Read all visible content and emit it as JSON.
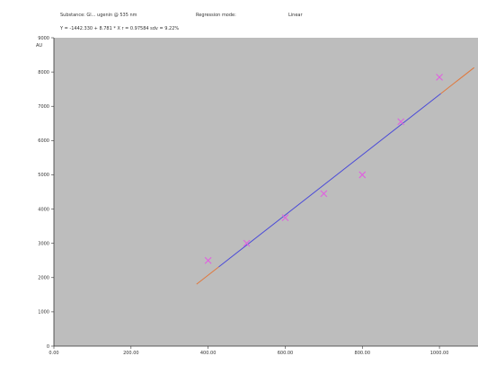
{
  "header": {
    "substance": "Substance: Gl... ugenin @ 535 nm",
    "regression_mode": "Regression mode:",
    "regression_value": "Linear",
    "equation": "Y = -1442.330 + 8.781 * X   r = 0.97584   sdv = 9.22%"
  },
  "chart_data": {
    "type": "scatter",
    "ylabel": "AU",
    "xlim": [
      0,
      1100
    ],
    "ylim": [
      0,
      9000
    ],
    "x_ticks": [
      "0.00",
      "200.00",
      "400.00",
      "600.00",
      "800.00",
      "1000.00"
    ],
    "y_ticks": [
      "0",
      "1000",
      "2000",
      "3000",
      "4000",
      "5000",
      "6000",
      "7000",
      "8000",
      "9000"
    ],
    "points": [
      {
        "x": 400,
        "y": 2500
      },
      {
        "x": 500,
        "y": 3000
      },
      {
        "x": 600,
        "y": 3750
      },
      {
        "x": 700,
        "y": 4450
      },
      {
        "x": 800,
        "y": 5000
      },
      {
        "x": 900,
        "y": 6550
      },
      {
        "x": 1000,
        "y": 7850
      }
    ],
    "fit_line": {
      "x_start": 370,
      "x_end": 1090,
      "intercept": -1442.33,
      "slope": 8.781
    },
    "colors": {
      "plot_bg": "#bdbdbd",
      "points": "#e060e0",
      "fit_blue": "#4a4ad8",
      "fit_orange": "#e0783c"
    }
  }
}
